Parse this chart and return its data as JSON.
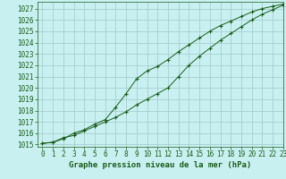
{
  "title": "Graphe pression niveau de la mer (hPa)",
  "bg_color": "#c8f0f0",
  "grid_color": "#a0c8c8",
  "line_color": "#1a5c1a",
  "marker_color": "#1a5c1a",
  "xlim": [
    -0.5,
    23
  ],
  "ylim": [
    1014.8,
    1027.6
  ],
  "yticks": [
    1015,
    1016,
    1017,
    1018,
    1019,
    1020,
    1021,
    1022,
    1023,
    1024,
    1025,
    1026,
    1027
  ],
  "xticks": [
    0,
    1,
    2,
    3,
    4,
    5,
    6,
    7,
    8,
    9,
    10,
    11,
    12,
    13,
    14,
    15,
    16,
    17,
    18,
    19,
    20,
    21,
    22,
    23
  ],
  "series1_x": [
    0,
    1,
    2,
    3,
    4,
    5,
    6,
    7,
    8,
    9,
    10,
    11,
    12,
    13,
    14,
    15,
    16,
    17,
    18,
    19,
    20,
    21,
    22,
    23
  ],
  "series1_y": [
    1015.1,
    1015.2,
    1015.6,
    1015.8,
    1016.2,
    1016.6,
    1017.0,
    1017.4,
    1017.9,
    1018.5,
    1019.0,
    1019.5,
    1020.0,
    1021.0,
    1022.0,
    1022.8,
    1023.5,
    1024.2,
    1024.8,
    1025.4,
    1026.0,
    1026.5,
    1026.9,
    1027.3
  ],
  "series2_x": [
    0,
    1,
    2,
    3,
    4,
    5,
    6,
    7,
    8,
    9,
    10,
    11,
    12,
    13,
    14,
    15,
    16,
    17,
    18,
    19,
    20,
    21,
    22,
    23
  ],
  "series2_y": [
    1015.1,
    1015.2,
    1015.5,
    1016.0,
    1016.3,
    1016.8,
    1017.2,
    1018.3,
    1019.5,
    1020.8,
    1021.5,
    1021.9,
    1022.5,
    1023.2,
    1023.8,
    1024.4,
    1025.0,
    1025.5,
    1025.9,
    1026.3,
    1026.7,
    1027.0,
    1027.2,
    1027.4
  ],
  "tick_fontsize": 5.5,
  "label_fontsize": 6.5,
  "axis_color": "#1a5c1a",
  "tick_color": "#1a5c1a"
}
